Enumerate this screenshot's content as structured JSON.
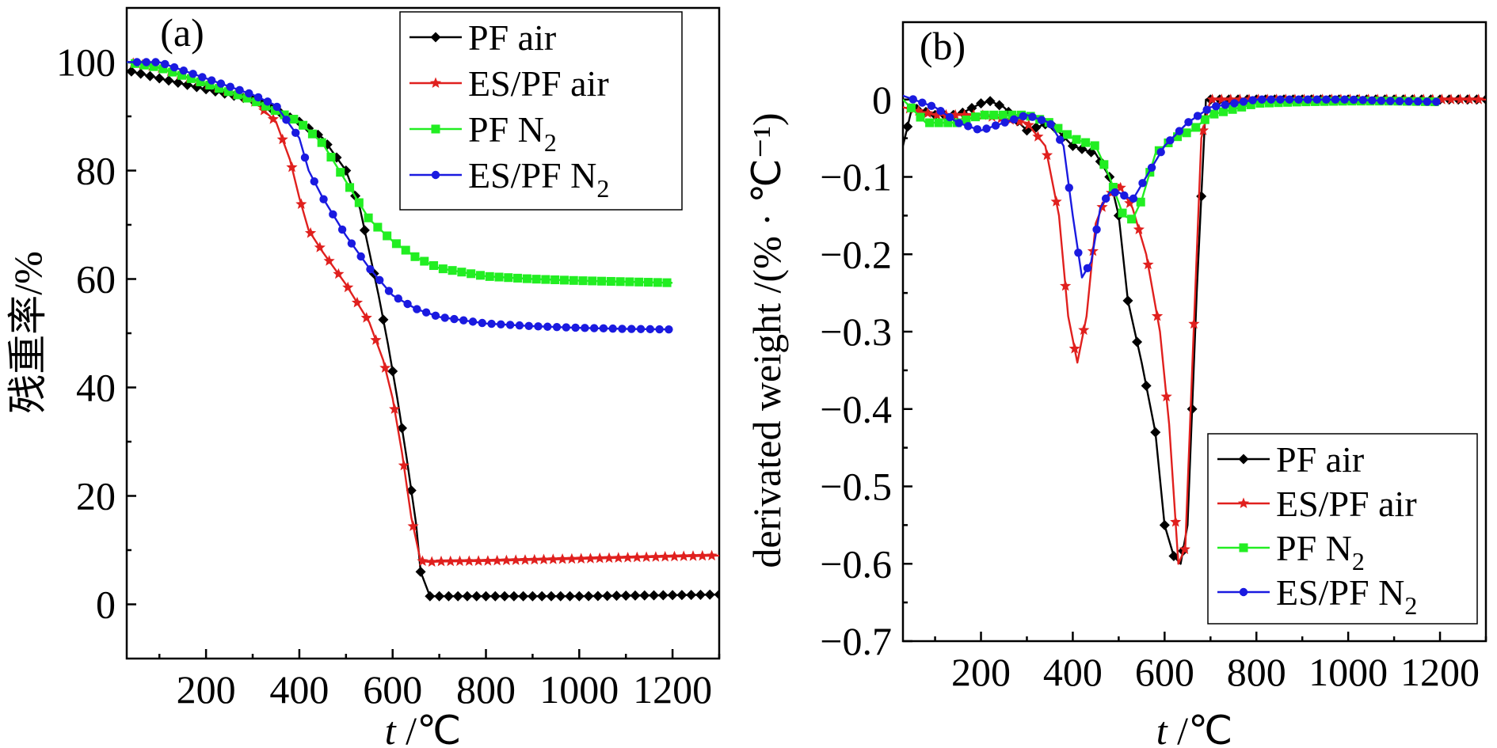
{
  "chart_data": [
    {
      "type": "line",
      "panel_label": "(a)",
      "xlabel": "t /℃",
      "xlabel_var": "t",
      "xlabel_unit": " /℃",
      "ylabel": "残重率/%",
      "xlim": [
        30,
        1300
      ],
      "ylim": [
        -10,
        110
      ],
      "xticks": [
        200,
        400,
        600,
        800,
        1000,
        1200
      ],
      "yticks": [
        0,
        20,
        40,
        60,
        80,
        100
      ],
      "legend_position": "top-right",
      "series": [
        {
          "name": "PF air",
          "sub": "",
          "color": "#000000",
          "marker": "diamond",
          "x": [
            30,
            100,
            200,
            300,
            350,
            400,
            450,
            500,
            530,
            550,
            570,
            590,
            610,
            630,
            650,
            660,
            680,
            700,
            800,
            900,
            1000,
            1100,
            1200,
            1300
          ],
          "y": [
            98.5,
            97,
            95,
            93,
            91,
            89,
            86,
            80,
            73,
            65,
            57,
            48,
            38,
            27,
            15,
            6,
            1.5,
            1.5,
            1.5,
            1.5,
            1.5,
            1.6,
            1.7,
            1.8
          ]
        },
        {
          "name": "ES/PF air",
          "sub": "",
          "color": "#e0201e",
          "marker": "star",
          "x": [
            30,
            100,
            200,
            300,
            350,
            380,
            400,
            420,
            450,
            500,
            550,
            580,
            600,
            620,
            640,
            660,
            680,
            700,
            800,
            900,
            1000,
            1100,
            1200,
            1300
          ],
          "y": [
            100,
            99,
            96,
            93,
            89,
            82,
            75,
            69,
            65,
            59,
            52,
            45,
            38,
            28,
            16,
            8,
            7.8,
            7.9,
            8.0,
            8.2,
            8.4,
            8.6,
            8.8,
            9.0
          ],
          "marker_stop": 1300
        },
        {
          "name": "PF N",
          "sub": "2",
          "color": "#22ee22",
          "marker": "square",
          "x": [
            30,
            100,
            200,
            300,
            400,
            450,
            500,
            550,
            600,
            650,
            700,
            800,
            900,
            1000,
            1100,
            1200
          ],
          "y": [
            100,
            99,
            96,
            93,
            89,
            85,
            78,
            71,
            67,
            64,
            62,
            60.5,
            60,
            59.7,
            59.5,
            59.3
          ]
        },
        {
          "name": "ES/PF N",
          "sub": "2",
          "color": "#1a1ae0",
          "marker": "circle",
          "x": [
            30,
            100,
            200,
            300,
            350,
            400,
            420,
            450,
            500,
            550,
            600,
            650,
            700,
            800,
            900,
            1000,
            1100,
            1200
          ],
          "y": [
            100,
            100,
            97,
            94,
            92,
            86,
            80,
            75,
            68,
            62,
            57,
            54.5,
            53,
            51.8,
            51.3,
            51,
            50.8,
            50.7
          ]
        }
      ]
    },
    {
      "type": "line",
      "panel_label": "(b)",
      "xlabel": "t /℃",
      "xlabel_var": "t",
      "xlabel_unit": " /℃",
      "ylabel": "derivated weight /(% · ℃⁻¹)",
      "xlim": [
        30,
        1300
      ],
      "ylim": [
        -0.7,
        0.1
      ],
      "xticks": [
        200,
        400,
        600,
        800,
        1000,
        1200
      ],
      "yticks": [
        0,
        -0.1,
        -0.2,
        -0.3,
        -0.4,
        -0.5,
        -0.6,
        -0.7
      ],
      "ytick_labels": [
        "0",
        "−0.1",
        "−0.2",
        "−0.3",
        "−0.4",
        "−0.5",
        "−0.6",
        "−0.7"
      ],
      "legend_position": "bottom-right",
      "series": [
        {
          "name": "PF air",
          "sub": "",
          "color": "#000000",
          "marker": "diamond",
          "x": [
            30,
            50,
            100,
            150,
            200,
            220,
            250,
            300,
            350,
            400,
            450,
            480,
            500,
            520,
            550,
            580,
            600,
            620,
            635,
            650,
            670,
            690,
            700,
            800,
            900,
            1000,
            1100,
            1200,
            1300
          ],
          "y": [
            -0.06,
            -0.01,
            -0.02,
            -0.02,
            -0.005,
            -0.002,
            -0.01,
            -0.04,
            -0.03,
            -0.06,
            -0.07,
            -0.1,
            -0.15,
            -0.26,
            -0.34,
            -0.43,
            -0.55,
            -0.59,
            -0.6,
            -0.55,
            -0.25,
            0.0,
            0.0,
            0.0,
            0.0,
            0.0,
            0.0,
            0.0,
            0.0
          ]
        },
        {
          "name": "ES/PF air",
          "sub": "",
          "color": "#e0201e",
          "marker": "star",
          "x": [
            30,
            100,
            200,
            300,
            340,
            370,
            390,
            410,
            430,
            450,
            470,
            500,
            530,
            560,
            590,
            610,
            630,
            645,
            660,
            680,
            700,
            800,
            900,
            1000,
            1100,
            1200,
            1300
          ],
          "y": [
            -0.01,
            -0.02,
            -0.02,
            -0.03,
            -0.06,
            -0.15,
            -0.28,
            -0.34,
            -0.28,
            -0.16,
            -0.13,
            -0.11,
            -0.14,
            -0.2,
            -0.3,
            -0.42,
            -0.6,
            -0.58,
            -0.35,
            -0.05,
            0.0,
            0.0,
            0.0,
            0.0,
            0.0,
            0.0,
            0.0
          ]
        },
        {
          "name": "PF N",
          "sub": "2",
          "color": "#22ee22",
          "marker": "square",
          "x": [
            30,
            80,
            150,
            200,
            250,
            300,
            350,
            400,
            450,
            480,
            510,
            530,
            550,
            580,
            620,
            660,
            700,
            800,
            900,
            1000,
            1100,
            1200
          ],
          "y": [
            0.0,
            -0.03,
            -0.03,
            -0.02,
            -0.02,
            -0.02,
            -0.03,
            -0.05,
            -0.06,
            -0.1,
            -0.15,
            -0.155,
            -0.13,
            -0.07,
            -0.05,
            -0.04,
            -0.02,
            -0.005,
            -0.003,
            -0.002,
            -0.002,
            -0.003
          ]
        },
        {
          "name": "ES/PF N",
          "sub": "2",
          "color": "#1a1ae0",
          "marker": "circle",
          "x": [
            30,
            100,
            150,
            200,
            250,
            300,
            350,
            380,
            400,
            420,
            440,
            460,
            480,
            500,
            530,
            560,
            600,
            650,
            700,
            800,
            900,
            1000,
            1100,
            1200
          ],
          "y": [
            0.005,
            -0.01,
            -0.03,
            -0.04,
            -0.03,
            -0.02,
            -0.03,
            -0.06,
            -0.15,
            -0.23,
            -0.21,
            -0.14,
            -0.12,
            -0.12,
            -0.13,
            -0.1,
            -0.06,
            -0.03,
            -0.01,
            0.0,
            0.0,
            0.0,
            -0.002,
            -0.003
          ]
        }
      ]
    }
  ]
}
